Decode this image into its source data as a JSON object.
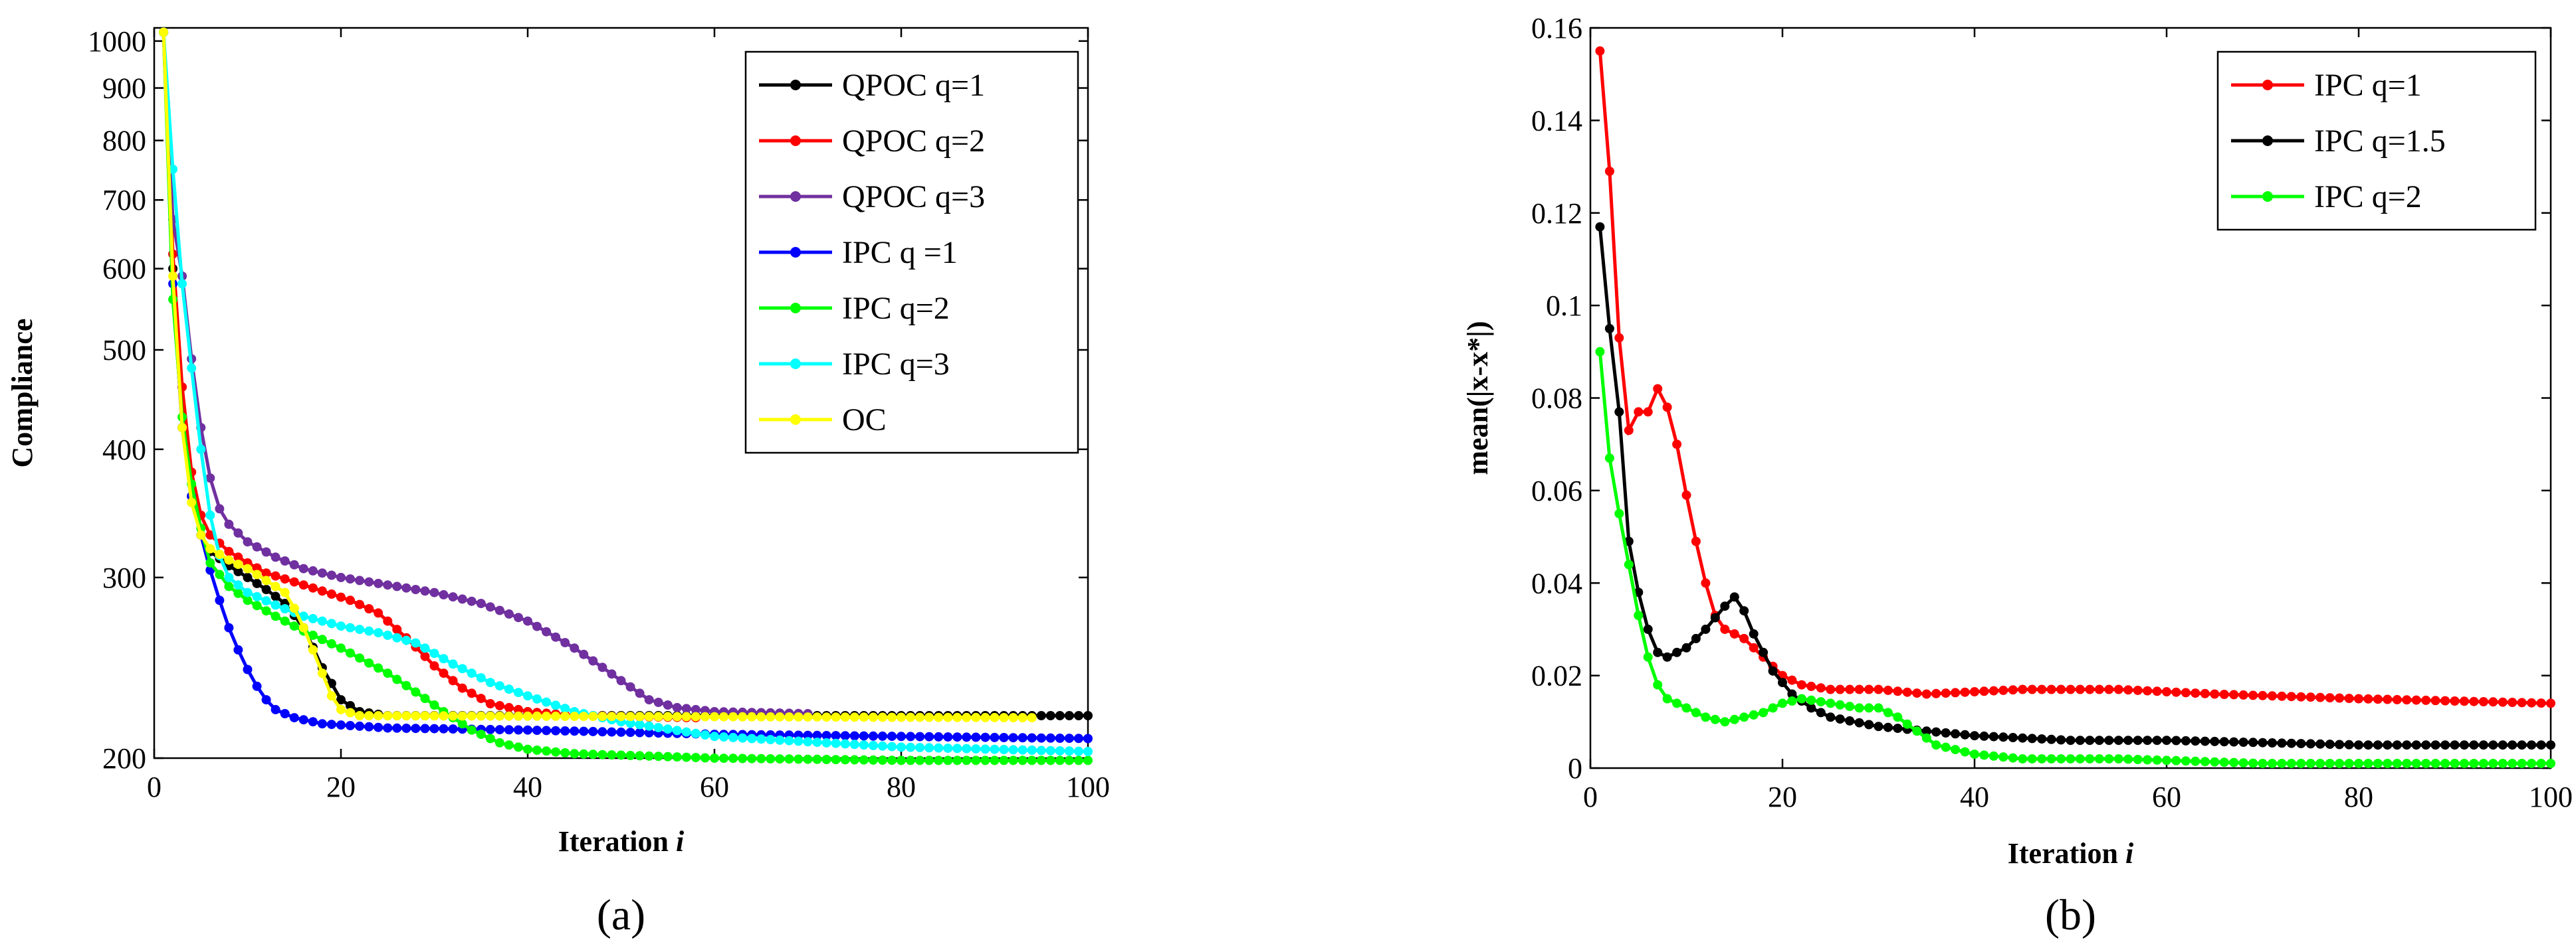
{
  "chart_data": [
    {
      "type": "line",
      "panel_caption": "(a)",
      "xlabel": "Iteration",
      "xlabel_var": "i",
      "ylabel": "Compliance",
      "xlim": [
        0,
        100
      ],
      "ylim": [
        200,
        1030
      ],
      "yscale": "log",
      "xticks": [
        0,
        20,
        40,
        60,
        80,
        100
      ],
      "yticks": [
        200,
        300,
        400,
        500,
        600,
        700,
        800,
        900,
        1000
      ],
      "legend_position": "top-right",
      "series": [
        {
          "name": "QPOC q=1",
          "color": "#000000",
          "end": 100,
          "points": [
            [
              1,
              1020
            ],
            [
              2,
              600
            ],
            [
              3,
              420
            ],
            [
              4,
              360
            ],
            [
              5,
              330
            ],
            [
              6,
              318
            ],
            [
              8,
              308
            ],
            [
              10,
              300
            ],
            [
              12,
              292
            ],
            [
              14,
              283
            ],
            [
              16,
              268
            ],
            [
              18,
              245
            ],
            [
              20,
              228
            ],
            [
              22,
              222
            ],
            [
              25,
              220
            ],
            [
              100,
              220
            ]
          ]
        },
        {
          "name": "QPOC q=2",
          "color": "#ff0000",
          "end": 58,
          "points": [
            [
              1,
              1020
            ],
            [
              2,
              620
            ],
            [
              3,
              460
            ],
            [
              4,
              380
            ],
            [
              5,
              345
            ],
            [
              6,
              330
            ],
            [
              8,
              318
            ],
            [
              10,
              310
            ],
            [
              12,
              303
            ],
            [
              15,
              297
            ],
            [
              18,
              291
            ],
            [
              21,
              285
            ],
            [
              24,
              277
            ],
            [
              27,
              262
            ],
            [
              30,
              246
            ],
            [
              33,
              234
            ],
            [
              36,
              226
            ],
            [
              40,
              222
            ],
            [
              45,
              220
            ],
            [
              58,
              219
            ]
          ]
        },
        {
          "name": "QPOC q=3",
          "color": "#7030a0",
          "end": 70,
          "points": [
            [
              1,
              1020
            ],
            [
              2,
              670
            ],
            [
              3,
              590
            ],
            [
              4,
              490
            ],
            [
              5,
              420
            ],
            [
              6,
              375
            ],
            [
              7,
              350
            ],
            [
              8,
              338
            ],
            [
              10,
              325
            ],
            [
              13,
              314
            ],
            [
              16,
              306
            ],
            [
              20,
              300
            ],
            [
              25,
              295
            ],
            [
              30,
              290
            ],
            [
              35,
              283
            ],
            [
              40,
              272
            ],
            [
              45,
              256
            ],
            [
              50,
              238
            ],
            [
              53,
              228
            ],
            [
              56,
              224
            ],
            [
              60,
              222
            ],
            [
              70,
              221
            ]
          ]
        },
        {
          "name": "IPC q =1",
          "color": "#0000ff",
          "end": 100,
          "points": [
            [
              1,
              1020
            ],
            [
              2,
              580
            ],
            [
              3,
              420
            ],
            [
              4,
              360
            ],
            [
              5,
              330
            ],
            [
              6,
              305
            ],
            [
              7,
              285
            ],
            [
              8,
              268
            ],
            [
              9,
              255
            ],
            [
              10,
              244
            ],
            [
              11,
              235
            ],
            [
              12,
              228
            ],
            [
              13,
              223
            ],
            [
              15,
              219
            ],
            [
              18,
              216
            ],
            [
              25,
              214
            ],
            [
              40,
              213
            ],
            [
              60,
              211
            ],
            [
              80,
              210
            ],
            [
              100,
              209
            ]
          ]
        },
        {
          "name": "IPC q=2",
          "color": "#00ff00",
          "end": 100,
          "points": [
            [
              1,
              1020
            ],
            [
              2,
              560
            ],
            [
              3,
              430
            ],
            [
              4,
              370
            ],
            [
              5,
              335
            ],
            [
              6,
              310
            ],
            [
              8,
              294
            ],
            [
              10,
              285
            ],
            [
              13,
              275
            ],
            [
              16,
              266
            ],
            [
              20,
              256
            ],
            [
              25,
              242
            ],
            [
              28,
              232
            ],
            [
              31,
              222
            ],
            [
              34,
              213
            ],
            [
              37,
              207
            ],
            [
              40,
              204
            ],
            [
              45,
              202
            ],
            [
              60,
              200
            ],
            [
              80,
              199
            ],
            [
              100,
              199
            ]
          ]
        },
        {
          "name": "IPC q=3",
          "color": "#00ffff",
          "end": 100,
          "points": [
            [
              1,
              1020
            ],
            [
              2,
              750
            ],
            [
              3,
              580
            ],
            [
              4,
              480
            ],
            [
              5,
              400
            ],
            [
              6,
              345
            ],
            [
              7,
              315
            ],
            [
              8,
              300
            ],
            [
              10,
              290
            ],
            [
              13,
              282
            ],
            [
              16,
              275
            ],
            [
              20,
              269
            ],
            [
              24,
              265
            ],
            [
              28,
              259
            ],
            [
              32,
              247
            ],
            [
              36,
              237
            ],
            [
              40,
              230
            ],
            [
              45,
              222
            ],
            [
              50,
              217
            ],
            [
              60,
              210
            ],
            [
              80,
              205
            ],
            [
              100,
              203
            ]
          ]
        },
        {
          "name": "OC",
          "color": "#ffff00",
          "end": 94,
          "points": [
            [
              1,
              1020
            ],
            [
              2,
              590
            ],
            [
              3,
              420
            ],
            [
              4,
              355
            ],
            [
              5,
              330
            ],
            [
              6,
              320
            ],
            [
              8,
              312
            ],
            [
              10,
              306
            ],
            [
              12,
              298
            ],
            [
              14,
              290
            ],
            [
              15,
              280
            ],
            [
              16,
              268
            ],
            [
              17,
              255
            ],
            [
              18,
              242
            ],
            [
              19,
              230
            ],
            [
              20,
              223
            ],
            [
              22,
              220
            ],
            [
              94,
              219
            ]
          ]
        }
      ]
    },
    {
      "type": "line",
      "panel_caption": "(b)",
      "xlabel": "Iteration",
      "xlabel_var": "i",
      "ylabel": "mean(|x-x*|)",
      "xlim": [
        0,
        100
      ],
      "ylim": [
        0,
        0.16
      ],
      "xticks": [
        0,
        20,
        40,
        60,
        80,
        100
      ],
      "yticks": [
        "0",
        "0.02",
        "0.04",
        "0.06",
        "0.08",
        "0.1",
        "0.12",
        "0.14",
        "0.16"
      ],
      "legend_position": "top-right",
      "series": [
        {
          "name": "IPC q=1",
          "color": "#ff0000",
          "end": 100,
          "points": [
            [
              1,
              0.155
            ],
            [
              2,
              0.129
            ],
            [
              3,
              0.093
            ],
            [
              4,
              0.073
            ],
            [
              5,
              0.077
            ],
            [
              6,
              0.077
            ],
            [
              7,
              0.082
            ],
            [
              8,
              0.078
            ],
            [
              9,
              0.07
            ],
            [
              10,
              0.059
            ],
            [
              11,
              0.049
            ],
            [
              12,
              0.04
            ],
            [
              13,
              0.033
            ],
            [
              14,
              0.03
            ],
            [
              16,
              0.028
            ],
            [
              18,
              0.024
            ],
            [
              20,
              0.02
            ],
            [
              22,
              0.018
            ],
            [
              25,
              0.017
            ],
            [
              30,
              0.017
            ],
            [
              35,
              0.016
            ],
            [
              45,
              0.017
            ],
            [
              55,
              0.017
            ],
            [
              65,
              0.016
            ],
            [
              80,
              0.015
            ],
            [
              100,
              0.014
            ]
          ]
        },
        {
          "name": "IPC q=1.5",
          "color": "#000000",
          "end": 100,
          "points": [
            [
              1,
              0.117
            ],
            [
              2,
              0.095
            ],
            [
              3,
              0.077
            ],
            [
              4,
              0.049
            ],
            [
              5,
              0.038
            ],
            [
              6,
              0.03
            ],
            [
              7,
              0.025
            ],
            [
              8,
              0.024
            ],
            [
              10,
              0.026
            ],
            [
              12,
              0.03
            ],
            [
              14,
              0.035
            ],
            [
              15,
              0.037
            ],
            [
              16,
              0.034
            ],
            [
              17,
              0.029
            ],
            [
              19,
              0.021
            ],
            [
              21,
              0.016
            ],
            [
              23,
              0.013
            ],
            [
              25,
              0.011
            ],
            [
              30,
              0.009
            ],
            [
              35,
              0.008
            ],
            [
              40,
              0.007
            ],
            [
              50,
              0.006
            ],
            [
              60,
              0.006
            ],
            [
              80,
              0.005
            ],
            [
              100,
              0.005
            ]
          ]
        },
        {
          "name": "IPC q=2",
          "color": "#00ff00",
          "end": 100,
          "points": [
            [
              1,
              0.09
            ],
            [
              2,
              0.067
            ],
            [
              3,
              0.055
            ],
            [
              4,
              0.044
            ],
            [
              5,
              0.033
            ],
            [
              6,
              0.024
            ],
            [
              7,
              0.018
            ],
            [
              8,
              0.015
            ],
            [
              10,
              0.013
            ],
            [
              12,
              0.011
            ],
            [
              14,
              0.01
            ],
            [
              16,
              0.011
            ],
            [
              18,
              0.012
            ],
            [
              20,
              0.014
            ],
            [
              22,
              0.015
            ],
            [
              25,
              0.014
            ],
            [
              28,
              0.013
            ],
            [
              30,
              0.013
            ],
            [
              32,
              0.011
            ],
            [
              34,
              0.008
            ],
            [
              36,
              0.005
            ],
            [
              40,
              0.003
            ],
            [
              45,
              0.002
            ],
            [
              55,
              0.002
            ],
            [
              70,
              0.001
            ],
            [
              100,
              0.001
            ]
          ]
        }
      ]
    }
  ]
}
